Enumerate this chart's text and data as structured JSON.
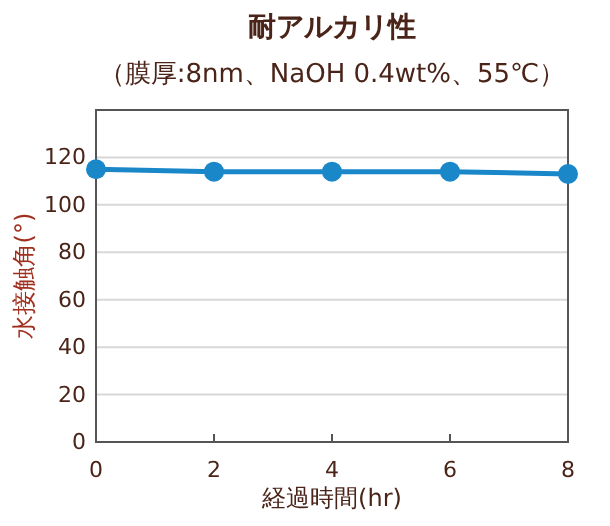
{
  "chart_data": {
    "type": "line",
    "title": "耐アルカリ性",
    "subtitle": "（膜厚:8nm、NaOH 0.4wt%、55℃）",
    "xlabel": "経過時間(hr)",
    "ylabel": "水接触角(°)",
    "x": [
      0,
      2,
      4,
      6,
      8
    ],
    "series": [
      {
        "color": "#1a87c9",
        "values": [
          115,
          114,
          114,
          114,
          113
        ]
      }
    ],
    "xlim": [
      0,
      8
    ],
    "xticks": [
      0,
      2,
      4,
      6,
      8
    ],
    "ylim": [
      0,
      140
    ],
    "yticks": [
      0,
      20,
      40,
      60,
      80,
      100,
      120
    ],
    "grid": "y",
    "marker": "circle",
    "line_style": "solid"
  }
}
